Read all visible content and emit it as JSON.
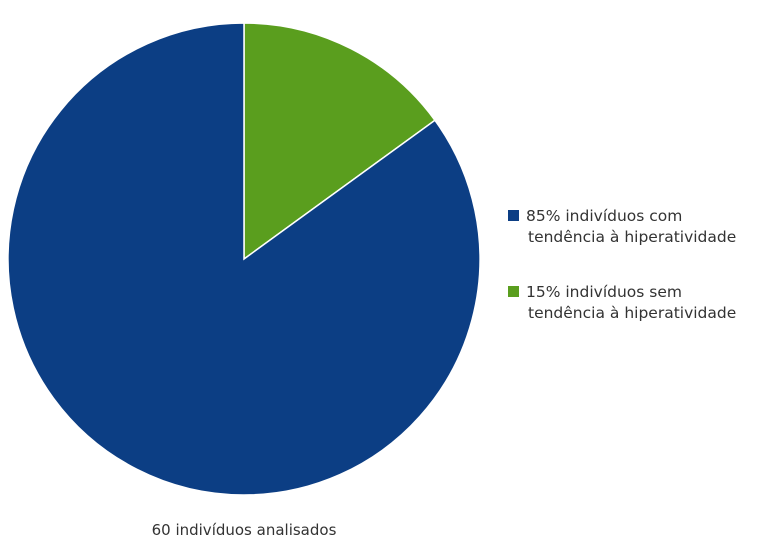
{
  "chart_data": {
    "type": "pie",
    "title": "",
    "caption": "60 indivíduos analisados",
    "start_angle_deg": 0,
    "direction": "clockwise",
    "slices": [
      {
        "label_line1": "15% indivíduos sem",
        "label_line2": "tendência à hiperatividade",
        "value": 15,
        "color": "#5a9e1e"
      },
      {
        "label_line1": "85% indivíduos com",
        "label_line2": "tendência à hiperatividade",
        "value": 85,
        "color": "#0c3e84"
      }
    ],
    "legend": {
      "placement": "right",
      "order": [
        1,
        0
      ]
    }
  }
}
